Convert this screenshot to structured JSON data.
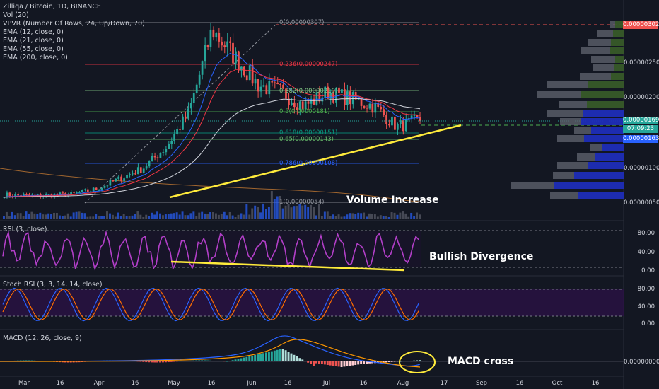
{
  "legend": {
    "title": "Zilliqa / Bitcoin, 1D, BINANCE",
    "items": [
      "Vol (20)",
      "VPVR (Number Of Rows, 24, Up/Down, 70)",
      "EMA (12, close, 0)",
      "EMA (21, close, 0)",
      "EMA (55, close, 0)",
      "EMA (200, close, 0)"
    ]
  },
  "panes": {
    "rsi_title": "RSI (3, close)",
    "stoch_title": "Stoch RSI (3, 3, 14, 14, close)",
    "macd_title": "MACD (12, 26, close, 9)"
  },
  "annotations": {
    "volume": "Volume Increase",
    "divergence": "Bullish Divergence",
    "macd": "MACD cross"
  },
  "fib": [
    {
      "label": "0(0.00000307)",
      "color": "#9598a1"
    },
    {
      "label": "0.236(0.00000247)",
      "color": "#f23645"
    },
    {
      "label": "0.382(0.00000210)",
      "color": "#81c784"
    },
    {
      "label": "0.5(0.00000181)",
      "color": "#4caf50"
    },
    {
      "label": "0.618(0.00000151)",
      "color": "#089981"
    },
    {
      "label": "0.65(0.00000143)",
      "color": "#66bb6a"
    },
    {
      "label": "0.786(0.00000108)",
      "color": "#2962ff"
    },
    {
      "label": "1(0.00000054)",
      "color": "#9598a1"
    }
  ],
  "price_axis": [
    "0.00000250",
    "0.00000200",
    "0.00000100",
    "0.00000050"
  ],
  "price_tags": [
    {
      "text": "0.00000302",
      "bg": "#ef5350"
    },
    {
      "text": "0.00000169",
      "bg": "#26a69a"
    },
    {
      "text": "07:09:23",
      "bg": "#26a69a"
    },
    {
      "text": "0.00000163",
      "bg": "#2962ff"
    }
  ],
  "rsi_axis": [
    "80.00",
    "40.00",
    "0.00"
  ],
  "stoch_axis": [
    "80.00",
    "40.00",
    "0.00"
  ],
  "macd_axis": [
    "0.00000000"
  ],
  "x_axis": [
    "Mar",
    "16",
    "Apr",
    "16",
    "May",
    "16",
    "Jun",
    "16",
    "Jul",
    "16",
    "Aug",
    "17",
    "Sep",
    "16",
    "Oct",
    "16"
  ],
  "colors": {
    "up": "#26a69a",
    "down": "#ef5350",
    "rsi": "#b33fc9",
    "accent": "#ffeb3b"
  },
  "chart_data": {
    "type": "line",
    "title": "Zilliqa / Bitcoin, 1D, BINANCE",
    "xlabel": "",
    "ylabel": "",
    "ylim": [
      4e-07,
      3.1e-06
    ],
    "series": [
      {
        "name": "Zilliqa / Bitcoin",
        "values": [
          6.2e-07,
          6e-07,
          6.1e-07,
          6.3e-07,
          7e-07,
          8.5e-07,
          1e-06,
          1.3e-06,
          1.8e-06,
          3e-06,
          2.6e-06,
          2.2e-06,
          2.1e-06,
          1.9e-06,
          2.1e-06,
          2e-06,
          1.9e-06,
          1.6e-06,
          1.7e-06
        ]
      }
    ],
    "legend_location": "top-left"
  }
}
